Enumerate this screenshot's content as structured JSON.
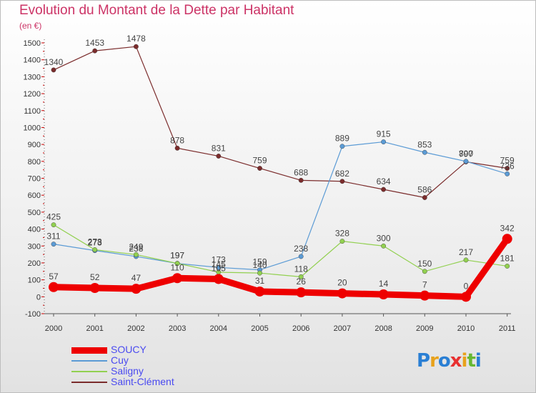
{
  "title": "Evolution du Montant de la Dette par Habitant",
  "unit_label": "(en €)",
  "logo": {
    "text": "Proxiti",
    "letters": [
      {
        "ch": "P",
        "color": "#2a7fd4"
      },
      {
        "ch": "r",
        "color": "#e8a21c"
      },
      {
        "ch": "o",
        "color": "#2a7fd4"
      },
      {
        "ch": "x",
        "color": "#e83030"
      },
      {
        "ch": "i",
        "color": "#e8a21c"
      },
      {
        "ch": "t",
        "color": "#66b832"
      },
      {
        "ch": "i",
        "color": "#2a7fd4"
      }
    ]
  },
  "chart_data": {
    "type": "line",
    "title": "Evolution du Montant de la Dette par Habitant",
    "ylabel": "(en €)",
    "ylim": [
      -100,
      1500
    ],
    "yticks": [
      -100,
      0,
      100,
      200,
      300,
      400,
      500,
      600,
      700,
      800,
      900,
      1000,
      1100,
      1200,
      1300,
      1400,
      1500
    ],
    "x": [
      "2000",
      "2001",
      "2002",
      "2003",
      "2004",
      "2005",
      "2006",
      "2007",
      "2008",
      "2009",
      "2010",
      "2011"
    ],
    "grid": false,
    "legend_position": "bottom-left",
    "series": [
      {
        "name": "SOUCY",
        "color": "#ee0000",
        "values": [
          57,
          52,
          47,
          110,
          105,
          31,
          26,
          20,
          14,
          7,
          0,
          342
        ]
      },
      {
        "name": "Cuy",
        "color": "#5b9bd5",
        "values": [
          311,
          273,
          238,
          197,
          173,
          159,
          238,
          889,
          915,
          853,
          800,
          726
        ]
      },
      {
        "name": "Saligny",
        "color": "#92d050",
        "values": [
          425,
          278,
          249,
          197,
          145,
          140,
          118,
          328,
          300,
          150,
          217,
          181
        ]
      },
      {
        "name": "Saint-Clément",
        "color": "#7b2c2c",
        "values": [
          1340,
          1453,
          1478,
          878,
          831,
          759,
          688,
          682,
          634,
          586,
          797,
          759
        ]
      }
    ]
  }
}
